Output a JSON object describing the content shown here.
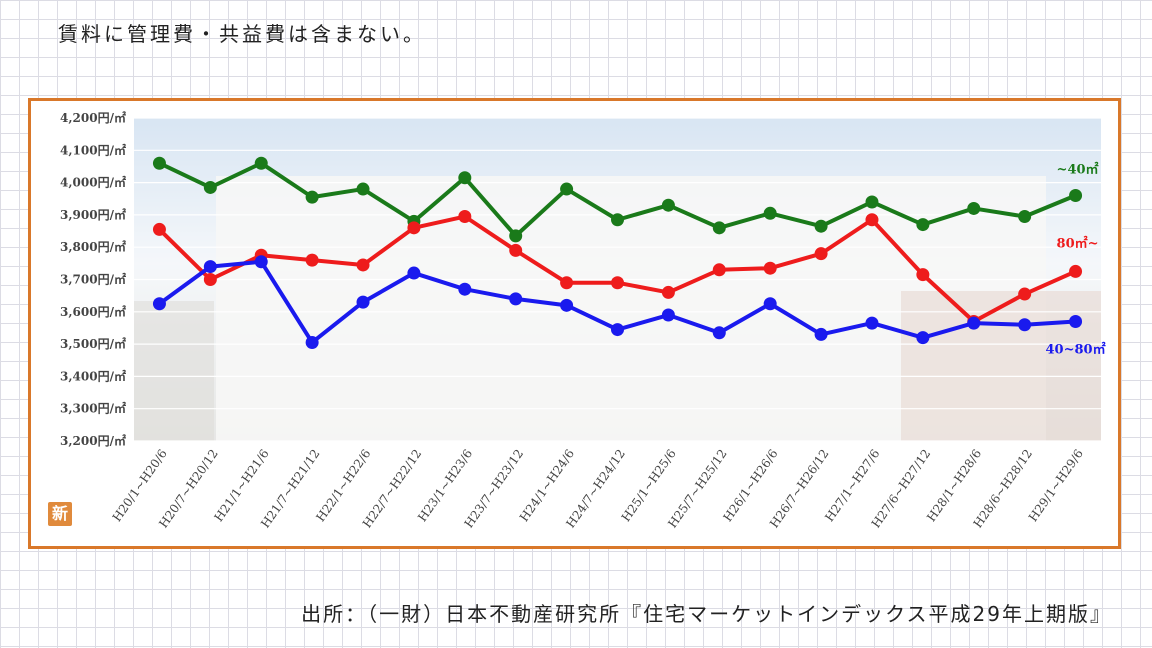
{
  "header": {
    "note": "賃料に管理費・共益費は含まない。"
  },
  "footer": {
    "source": "出所：（一財）日本不動産研究所『住宅マーケットインデックス平成29年上期版』"
  },
  "logo": {
    "text": "新"
  },
  "chart_data": {
    "type": "line",
    "categories": [
      "H20/1~H20/6",
      "H20/7~H20/12",
      "H21/1~H21/6",
      "H21/7~H21/12",
      "H22/1~H22/6",
      "H22/7~H22/12",
      "H23/1~H23/6",
      "H23/7~H23/12",
      "H24/1~H24/6",
      "H24/7~H24/12",
      "H25/1~H25/6",
      "H25/7~H25/12",
      "H26/1~H26/6",
      "H26/7~H26/12",
      "H27/1~H27/6",
      "H27/6~H27/12",
      "H28/1~H28/6",
      "H28/6~H28/12",
      "H29/1~H29/6"
    ],
    "yticks": [
      "3,200円/㎡",
      "3,300円/㎡",
      "3,400円/㎡",
      "3,500円/㎡",
      "3,600円/㎡",
      "3,700円/㎡",
      "3,800円/㎡",
      "3,900円/㎡",
      "4,000円/㎡",
      "4,100円/㎡",
      "4,200円/㎡"
    ],
    "ylim": [
      3200,
      4200
    ],
    "grid": true,
    "series": [
      {
        "name": "~40㎡",
        "color": "#1a7a1a",
        "values": [
          4060,
          3985,
          4060,
          3955,
          3980,
          3880,
          4015,
          3835,
          3980,
          3885,
          3930,
          3860,
          3905,
          3865,
          3940,
          3870,
          3920,
          3895,
          3960
        ]
      },
      {
        "name": "80㎡~",
        "color": "#ee1c1c",
        "values": [
          3855,
          3700,
          3775,
          3760,
          3745,
          3860,
          3895,
          3790,
          3690,
          3690,
          3660,
          3730,
          3735,
          3780,
          3885,
          3715,
          3570,
          3655,
          3725
        ]
      },
      {
        "name": "40~80㎡",
        "color": "#1a1aee",
        "values": [
          3625,
          3740,
          3755,
          3505,
          3630,
          3720,
          3670,
          3640,
          3620,
          3545,
          3590,
          3535,
          3625,
          3530,
          3565,
          3520,
          3565,
          3560,
          3570
        ]
      }
    ]
  }
}
